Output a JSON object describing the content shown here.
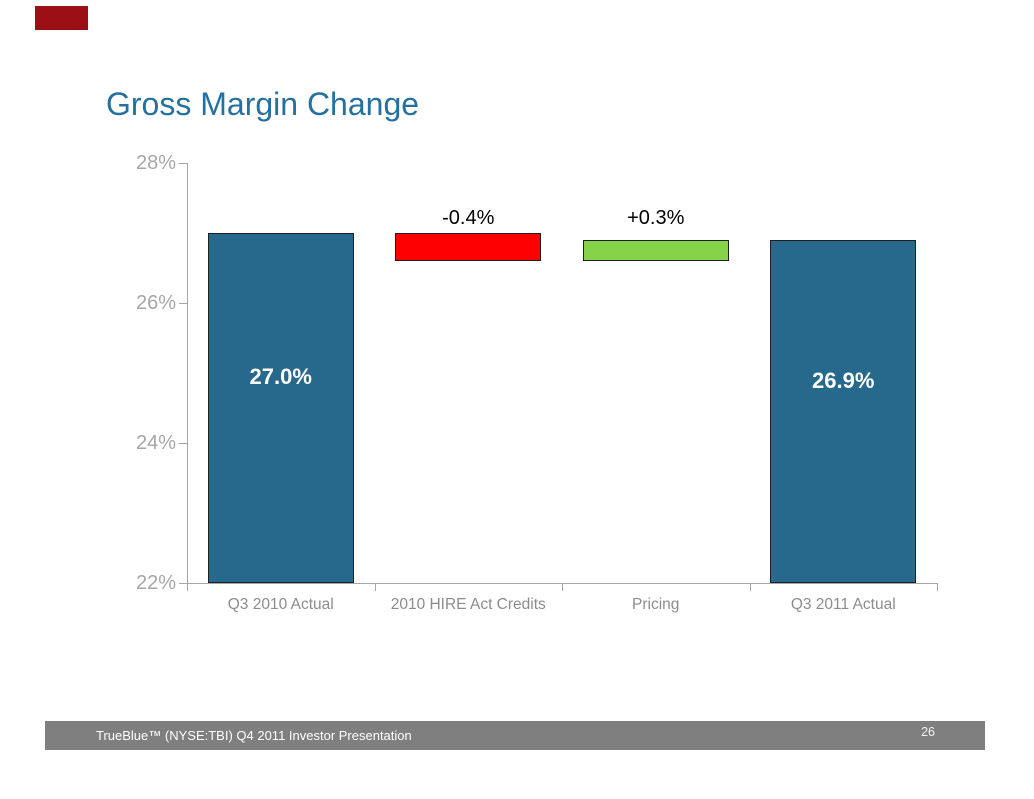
{
  "slide": {
    "title": "Gross Margin Change",
    "title_color": "#2470A0",
    "background_color": "#FFFFFF",
    "corner_accent_color": "#9B1014"
  },
  "footer": {
    "text": "TrueBlue™ (NYSE:TBI) Q4 2011 Investor Presentation",
    "page_number": "26",
    "bar_color": "#7F7F7F",
    "text_color": "#FFFFFF"
  },
  "chart_data": {
    "type": "bar",
    "subtype": "waterfall",
    "title": "Gross Margin Change",
    "categories": [
      "Q3 2010 Actual",
      "2010 HIRE Act Credits",
      "Pricing",
      "Q3 2011 Actual"
    ],
    "values": [
      27.0,
      -0.4,
      0.3,
      26.9
    ],
    "bars": [
      {
        "category": "Q3 2010 Actual",
        "from": 22.0,
        "to": 27.0,
        "label": "27.0%",
        "color": "#26698C",
        "label_color": "#FFFFFF",
        "label_position": "inside"
      },
      {
        "category": "2010 HIRE Act Credits",
        "from": 27.0,
        "to": 26.6,
        "label": "-0.4%",
        "color": "#FF0000",
        "label_color": "#000000",
        "label_position": "above"
      },
      {
        "category": "Pricing",
        "from": 26.6,
        "to": 26.9,
        "label": "+0.3%",
        "color": "#85D348",
        "label_color": "#000000",
        "label_position": "above"
      },
      {
        "category": "Q3 2011 Actual",
        "from": 22.0,
        "to": 26.9,
        "label": "26.9%",
        "color": "#26698C",
        "label_color": "#FFFFFF",
        "label_position": "inside"
      }
    ],
    "y_axis": {
      "min": 22,
      "max": 28,
      "tick_labels": [
        "28%",
        "26%",
        "24%",
        "22%"
      ],
      "tick_values": [
        28,
        26,
        24,
        22
      ],
      "color": "#A6A6A6"
    },
    "x_axis": {
      "label_color": "#8C8C8C"
    },
    "grid": false,
    "legend": "none"
  }
}
